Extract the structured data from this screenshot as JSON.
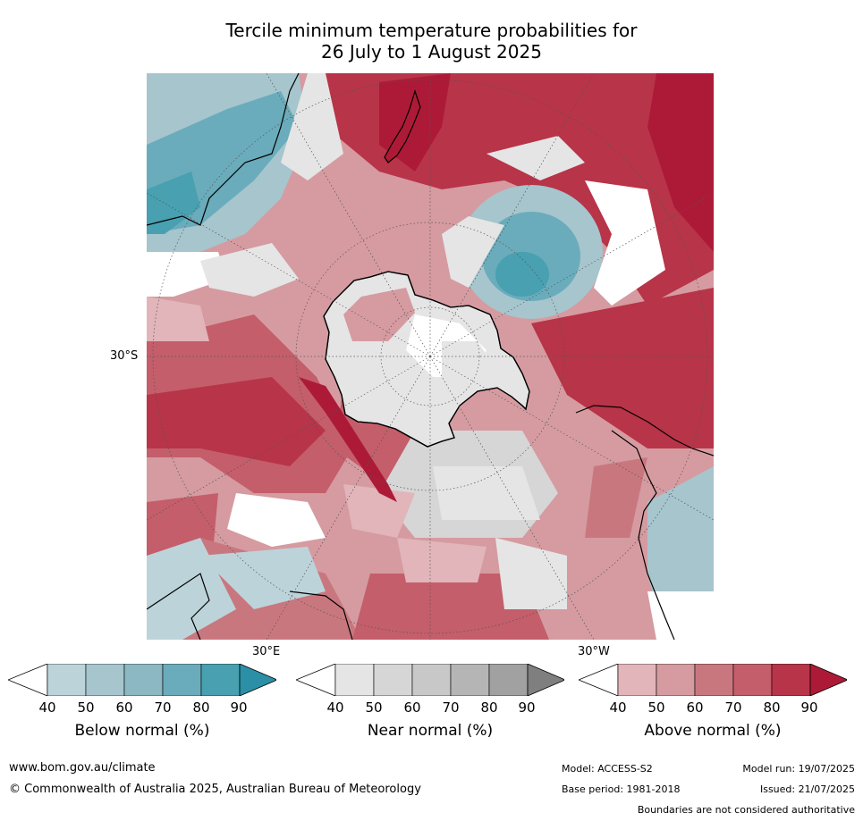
{
  "title": {
    "line1": "Tercile minimum temperature probabilities for",
    "line2": "26 July to 1 August 2025"
  },
  "map": {
    "projection": "south polar stereographic",
    "lat_label": "30°S",
    "lon_labels": [
      "30°E",
      "30°W"
    ]
  },
  "legend": {
    "ticks": [
      "40",
      "50",
      "60",
      "70",
      "80",
      "90"
    ],
    "bars": [
      {
        "name": "below",
        "label": "Below normal (%)",
        "colors": [
          "#ffffff",
          "#bdd3da",
          "#a6c5cd",
          "#8cb8c4",
          "#6aacbb",
          "#48a0b0",
          "#2b8fa6"
        ]
      },
      {
        "name": "near",
        "label": "Near normal (%)",
        "colors": [
          "#ffffff",
          "#e5e5e5",
          "#d6d6d6",
          "#c8c8c8",
          "#b5b5b5",
          "#a1a1a1",
          "#7f7f7f"
        ]
      },
      {
        "name": "above",
        "label": "Above normal (%)",
        "colors": [
          "#ffffff",
          "#e1b5b9",
          "#d59ba1",
          "#c9777f",
          "#c45e6b",
          "#b83448",
          "#ad1a37"
        ]
      }
    ]
  },
  "footer": {
    "url": "www.bom.gov.au/climate",
    "copyright": "© Commonwealth of Australia 2025, Australian Bureau of Meteorology",
    "model": "Model: ACCESS-S2",
    "base_period": "Base period: 1981-2018",
    "model_run": "Model run: 19/07/2025",
    "issued": "Issued: 21/07/2025",
    "disclaimer": "Boundaries are not considered authoritative"
  }
}
